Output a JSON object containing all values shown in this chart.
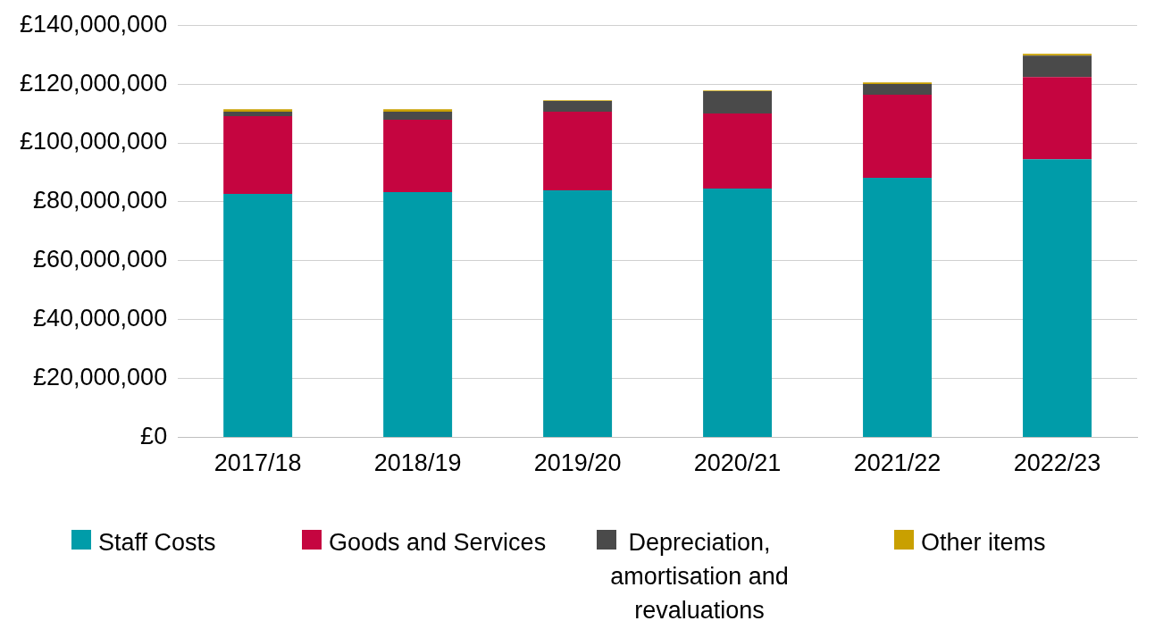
{
  "chart_data": {
    "type": "bar",
    "stacked": true,
    "categories": [
      "2017/18",
      "2018/19",
      "2019/20",
      "2020/21",
      "2021/22",
      "2022/23"
    ],
    "series": [
      {
        "name": "Staff Costs",
        "color": "#009ca9",
        "values": [
          82700000,
          83300000,
          83900000,
          84500000,
          88200000,
          94500000
        ]
      },
      {
        "name": "Goods and Services",
        "color": "#c50540",
        "values": [
          26400000,
          24600000,
          26700000,
          25500000,
          28200000,
          27900000
        ]
      },
      {
        "name": "Depreciation, amortisation and revaluations",
        "color": "#4a4a4a",
        "values": [
          1500000,
          2700000,
          3700000,
          7600000,
          3600000,
          7300000
        ]
      },
      {
        "name": "Other items",
        "color": "#c9a000",
        "values": [
          900000,
          900000,
          200000,
          200000,
          600000,
          600000
        ]
      }
    ],
    "ylim": [
      0,
      140000000
    ],
    "yticks": [
      {
        "value": 0,
        "label": "£0"
      },
      {
        "value": 20000000,
        "label": "£20,000,000"
      },
      {
        "value": 40000000,
        "label": "£40,000,000"
      },
      {
        "value": 60000000,
        "label": "£60,000,000"
      },
      {
        "value": 80000000,
        "label": "£80,000,000"
      },
      {
        "value": 100000000,
        "label": "£100,000,000"
      },
      {
        "value": 120000000,
        "label": "£120,000,000"
      },
      {
        "value": 140000000,
        "label": "£140,000,000"
      }
    ],
    "grid": "y",
    "legend": "bottom"
  }
}
